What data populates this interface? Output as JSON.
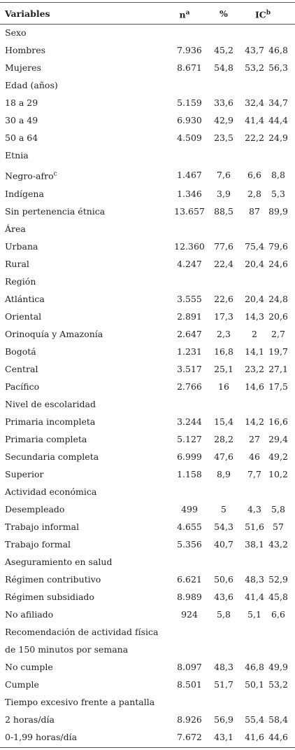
{
  "header": {
    "variables": "Variables",
    "n": "n",
    "n_note": "a",
    "percent": "%",
    "ic": "IC",
    "ic_note": "b"
  },
  "rows": [
    {
      "label": "Sexo"
    },
    {
      "label": "Hombres",
      "n": "7.936",
      "percent": "45,2",
      "ic_low": "43,7",
      "ic_high": "46,8"
    },
    {
      "label": "Mujeres",
      "n": "8.671",
      "percent": "54,8",
      "ic_low": "53,2",
      "ic_high": "56,3"
    },
    {
      "label": "Edad (años)"
    },
    {
      "label": "18 a 29",
      "n": "5.159",
      "percent": "33,6",
      "ic_low": "32,4",
      "ic_high": "34,7"
    },
    {
      "label": "30 a 49",
      "n": "6.930",
      "percent": "42,9",
      "ic_low": "41,4",
      "ic_high": "44,4"
    },
    {
      "label": "50 a 64",
      "n": "4.509",
      "percent": "23,5",
      "ic_low": "22,2",
      "ic_high": "24,9"
    },
    {
      "label": "Etnia"
    },
    {
      "label": "Negro-afro",
      "note": "c",
      "n": "1.467",
      "percent": "7,6",
      "ic_low": "6,6",
      "ic_high": "8,8"
    },
    {
      "label": "Indígena",
      "n": "1.346",
      "percent": "3,9",
      "ic_low": "2,8",
      "ic_high": "5,3"
    },
    {
      "label": "Sin pertenencia étnica",
      "n": "13.657",
      "percent": "88,5",
      "ic_low": "87",
      "ic_high": "89,9"
    },
    {
      "label": "Área"
    },
    {
      "label": "Urbana",
      "n": "12.360",
      "percent": "77,6",
      "ic_low": "75,4",
      "ic_high": "79,6"
    },
    {
      "label": "Rural",
      "n": "4.247",
      "percent": "22,4",
      "ic_low": "20,4",
      "ic_high": "24,6"
    },
    {
      "label": "Región"
    },
    {
      "label": "Atlántica",
      "n": "3.555",
      "percent": "22,6",
      "ic_low": "20,4",
      "ic_high": "24,8"
    },
    {
      "label": "Oriental",
      "n": "2.891",
      "percent": "17,3",
      "ic_low": "14,3",
      "ic_high": "20,6"
    },
    {
      "label": "Orinoquía y Amazonía",
      "n": "2.647",
      "percent": "2,3",
      "ic_low": "2",
      "ic_high": "2,7"
    },
    {
      "label": "Bogotá",
      "n": "1.231",
      "percent": "16,8",
      "ic_low": "14,1",
      "ic_high": "19,7"
    },
    {
      "label": "Central",
      "n": "3.517",
      "percent": "25,1",
      "ic_low": "23,2",
      "ic_high": "27,1"
    },
    {
      "label": "Pacífico",
      "n": "2.766",
      "percent": "16",
      "ic_low": "14,6",
      "ic_high": "17,5"
    },
    {
      "label": "Nivel de escolaridad"
    },
    {
      "label": "Primaria incompleta",
      "n": "3.244",
      "percent": "15,4",
      "ic_low": "14,2",
      "ic_high": "16,6"
    },
    {
      "label": "Primaria completa",
      "n": "5.127",
      "percent": "28,2",
      "ic_low": "27",
      "ic_high": "29,4"
    },
    {
      "label": "Secundaria completa",
      "n": "6.999",
      "percent": "47,6",
      "ic_low": "46",
      "ic_high": "49,2"
    },
    {
      "label": "Superior",
      "n": "1.158",
      "percent": "8,9",
      "ic_low": "7,7",
      "ic_high": "10,2"
    },
    {
      "label": "Actividad económica"
    },
    {
      "label": "Desempleado",
      "n": "499",
      "percent": "5",
      "ic_low": "4,3",
      "ic_high": "5,8"
    },
    {
      "label": "Trabajo informal",
      "n": "4.655",
      "percent": "54,3",
      "ic_low": "51,6",
      "ic_high": "57"
    },
    {
      "label": "Trabajo formal",
      "n": "5.356",
      "percent": "40,7",
      "ic_low": "38,1",
      "ic_high": "43,2"
    },
    {
      "label": "Aseguramiento en salud"
    },
    {
      "label": "Régimen contributivo",
      "n": "6.621",
      "percent": "50,6",
      "ic_low": "48,3",
      "ic_high": "52,9"
    },
    {
      "label": "Régimen subsidiado",
      "n": "8.989",
      "percent": "43,6",
      "ic_low": "41,4",
      "ic_high": "45,8"
    },
    {
      "label": "No afiliado",
      "n": "924",
      "percent": "5,8",
      "ic_low": "5,1",
      "ic_high": "6,6"
    },
    {
      "label": "Recomendación de actividad física"
    },
    {
      "label": "de 150 minutos por semana"
    },
    {
      "label": "No cumple",
      "n": "8.097",
      "percent": "48,3",
      "ic_low": "46,8",
      "ic_high": "49,9"
    },
    {
      "label": "Cumple",
      "n": "8.501",
      "percent": "51,7",
      "ic_low": "50,1",
      "ic_high": "53,2"
    },
    {
      "label": "Tiempo excesivo frente a pantalla"
    },
    {
      "label": "2 horas/día",
      "n": "8.926",
      "percent": "56,9",
      "ic_low": "55,4",
      "ic_high": "58,4"
    },
    {
      "label": "0-1,99 horas/día",
      "n": "7.672",
      "percent": "43,1",
      "ic_low": "41,6",
      "ic_high": "44,6"
    }
  ]
}
